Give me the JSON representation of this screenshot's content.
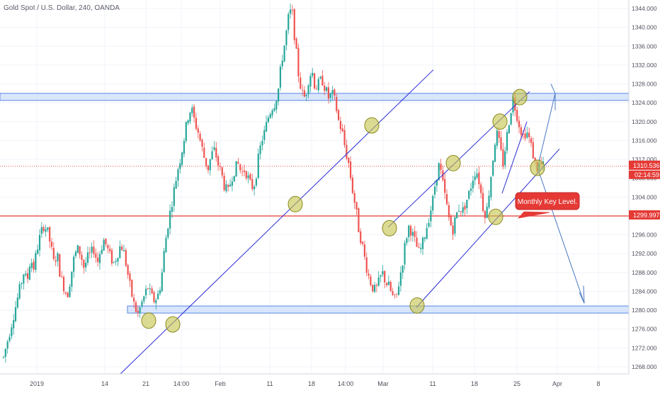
{
  "title": "Gold Spot / U.S. Dollar, 240, OANDA",
  "colors": {
    "up": "#26a69a",
    "down": "#ef5350",
    "zone_fill": "#cfe0fb",
    "zone_stroke": "#5b86e5",
    "trendline": "#2b2bd6",
    "arrow": "#4a78c2",
    "level_line": "#e53935",
    "marker_fill": "#c5c34a",
    "marker_stroke": "#8a8a1e",
    "axis_text": "#50535e",
    "grid": "#f0f3fa"
  },
  "price_tags": {
    "last": "1310.536",
    "countdown": "02:14:59",
    "level": "1299.997"
  },
  "annotation": "Monthly Key Level.",
  "chart_data": {
    "type": "candlestick",
    "title": "Gold Spot / U.S. Dollar, 240, OANDA",
    "y_axis_ticks": [
      "1344.000",
      "1340.000",
      "1336.000",
      "1332.000",
      "1328.000",
      "1324.000",
      "1320.000",
      "1316.000",
      "1312.000",
      "1308.000",
      "1304.000",
      "1300.000",
      "1296.000",
      "1292.000",
      "1288.000",
      "1284.000",
      "1280.000",
      "1276.000",
      "1272.000",
      "1268.000"
    ],
    "x_axis_ticks": [
      "2019",
      "14",
      "21",
      "14:00",
      "Feb",
      "11",
      "18",
      "14:00",
      "Mar",
      "11",
      "18",
      "25",
      "Apr",
      "8"
    ],
    "ylim": [
      1266.5,
      1345.8
    ],
    "last_price": 1310.536,
    "key_level": 1299.997,
    "zones": [
      {
        "low": 1324.5,
        "high": 1326.0
      },
      {
        "low": 1279.4,
        "high": 1280.9
      }
    ],
    "path_closes": [
      1270,
      1273,
      1276,
      1279,
      1282,
      1285,
      1288,
      1286,
      1291,
      1289,
      1293,
      1296,
      1298,
      1297,
      1294,
      1290,
      1292,
      1287,
      1285,
      1283,
      1287,
      1291,
      1293,
      1292,
      1289,
      1291,
      1292,
      1293,
      1290,
      1293,
      1295,
      1293,
      1291,
      1290,
      1292,
      1294,
      1292,
      1288,
      1284,
      1281,
      1279,
      1281,
      1283,
      1285,
      1283,
      1282,
      1283,
      1286,
      1293,
      1298,
      1302,
      1306,
      1310,
      1313,
      1317,
      1321,
      1323,
      1320,
      1318,
      1315,
      1312,
      1310,
      1313,
      1314,
      1311,
      1309,
      1306,
      1305,
      1308,
      1310,
      1311,
      1309,
      1310,
      1308,
      1306,
      1307,
      1312,
      1316,
      1318,
      1321,
      1323,
      1324,
      1327,
      1333,
      1337,
      1342,
      1344,
      1337,
      1330,
      1326,
      1325,
      1329,
      1331,
      1327,
      1328,
      1329,
      1327,
      1325,
      1326,
      1324,
      1320,
      1318,
      1314,
      1311,
      1306,
      1302,
      1297,
      1294,
      1290,
      1287,
      1285,
      1284,
      1286,
      1288,
      1286,
      1285,
      1283,
      1282,
      1286,
      1290,
      1295,
      1298,
      1296,
      1294,
      1292,
      1294,
      1297,
      1300,
      1303,
      1308,
      1311,
      1307,
      1303,
      1299,
      1297,
      1300,
      1302,
      1301,
      1303,
      1305,
      1308,
      1310,
      1307,
      1302,
      1300,
      1306,
      1312,
      1318,
      1315,
      1311,
      1316,
      1321,
      1325,
      1322,
      1319,
      1317,
      1318,
      1316,
      1313,
      1310,
      1311,
      1310.5
    ],
    "markers": [
      {
        "x": 210,
        "y": 1277.8
      },
      {
        "x": 244,
        "y": 1277.0
      },
      {
        "x": 417,
        "y": 1302.5
      },
      {
        "x": 525,
        "y": 1319.2
      },
      {
        "x": 550,
        "y": 1297.4
      },
      {
        "x": 589,
        "y": 1281.0
      },
      {
        "x": 640,
        "y": 1311.2
      },
      {
        "x": 706,
        "y": 1320.0
      },
      {
        "x": 734,
        "y": 1325.2
      },
      {
        "x": 700,
        "y": 1299.8
      },
      {
        "x": 759,
        "y": 1310.2
      }
    ]
  }
}
